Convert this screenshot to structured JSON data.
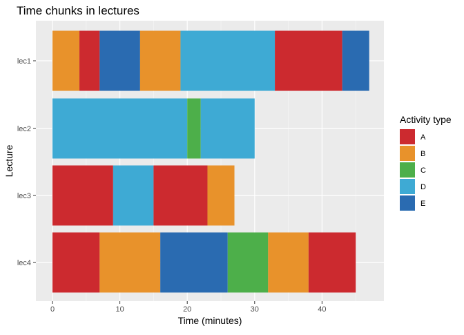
{
  "chart_data": {
    "type": "bar",
    "orientation": "horizontal-stacked",
    "title": "Time chunks in lectures",
    "xlabel": "Time (minutes)",
    "ylabel": "Lecture",
    "xlim": [
      0,
      49
    ],
    "xticks": [
      0,
      10,
      20,
      30,
      40
    ],
    "categories": [
      "lec1",
      "lec2",
      "lec3",
      "lec4"
    ],
    "grid": true,
    "legend": {
      "title": "Activity type",
      "position": "right",
      "items": [
        {
          "key": "A",
          "label": "A",
          "color": "#cc2a2f"
        },
        {
          "key": "B",
          "label": "B",
          "color": "#e8922b"
        },
        {
          "key": "C",
          "label": "C",
          "color": "#4daf4a"
        },
        {
          "key": "D",
          "label": "D",
          "color": "#3eaad4"
        },
        {
          "key": "E",
          "label": "E",
          "color": "#2a6bb1"
        }
      ]
    },
    "segments": [
      {
        "lecture": "lec1",
        "activity": "B",
        "start": 0,
        "end": 4
      },
      {
        "lecture": "lec1",
        "activity": "A",
        "start": 4,
        "end": 7
      },
      {
        "lecture": "lec1",
        "activity": "E",
        "start": 7,
        "end": 13
      },
      {
        "lecture": "lec1",
        "activity": "B",
        "start": 13,
        "end": 19
      },
      {
        "lecture": "lec1",
        "activity": "D",
        "start": 19,
        "end": 33
      },
      {
        "lecture": "lec1",
        "activity": "A",
        "start": 33,
        "end": 43
      },
      {
        "lecture": "lec1",
        "activity": "E",
        "start": 43,
        "end": 47
      },
      {
        "lecture": "lec2",
        "activity": "D",
        "start": 0,
        "end": 20
      },
      {
        "lecture": "lec2",
        "activity": "C",
        "start": 20,
        "end": 22
      },
      {
        "lecture": "lec2",
        "activity": "D",
        "start": 22,
        "end": 30
      },
      {
        "lecture": "lec3",
        "activity": "A",
        "start": 0,
        "end": 9
      },
      {
        "lecture": "lec3",
        "activity": "D",
        "start": 9,
        "end": 15
      },
      {
        "lecture": "lec3",
        "activity": "A",
        "start": 15,
        "end": 23
      },
      {
        "lecture": "lec3",
        "activity": "B",
        "start": 23,
        "end": 27
      },
      {
        "lecture": "lec4",
        "activity": "A",
        "start": 0,
        "end": 7
      },
      {
        "lecture": "lec4",
        "activity": "B",
        "start": 7,
        "end": 16
      },
      {
        "lecture": "lec4",
        "activity": "E",
        "start": 16,
        "end": 26
      },
      {
        "lecture": "lec4",
        "activity": "C",
        "start": 26,
        "end": 32
      },
      {
        "lecture": "lec4",
        "activity": "B",
        "start": 32,
        "end": 38
      },
      {
        "lecture": "lec4",
        "activity": "A",
        "start": 38,
        "end": 45
      }
    ]
  }
}
